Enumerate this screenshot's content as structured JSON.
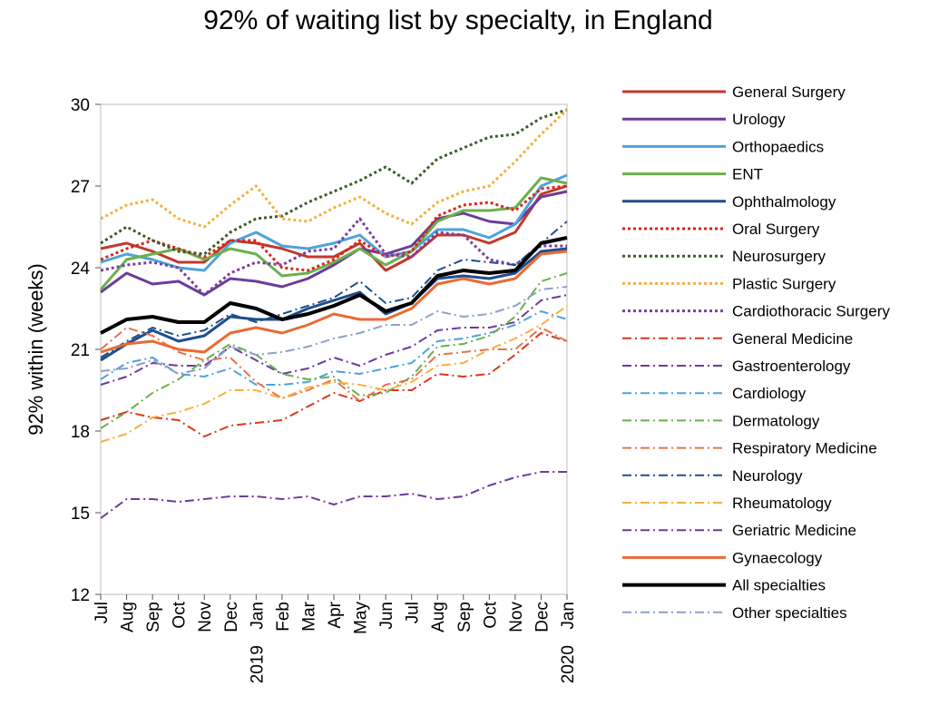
{
  "chart_data": {
    "type": "line",
    "title": "92% of waiting list by specialty, in England",
    "ylabel": "92% within (weeks)",
    "xlabel": "",
    "ylim": [
      12,
      30
    ],
    "yticks": [
      12,
      15,
      18,
      21,
      24,
      27,
      30
    ],
    "grid": false,
    "legend": "right",
    "x": [
      "Jul",
      "Aug",
      "Sep",
      "Oct",
      "Nov",
      "Dec",
      "Jan",
      "Feb",
      "Mar",
      "Apr",
      "May",
      "Jun",
      "Jul",
      "Aug",
      "Sep",
      "Oct",
      "Nov",
      "Dec",
      "Jan"
    ],
    "year_labels": [
      {
        "index": 6,
        "text": "2019"
      },
      {
        "index": 18,
        "text": "2020"
      }
    ],
    "series": [
      {
        "name": "General Surgery",
        "color": "#c0392b",
        "dash": "",
        "width": 3,
        "values": [
          24.7,
          24.9,
          24.6,
          24.2,
          24.2,
          25.0,
          24.9,
          24.7,
          24.4,
          24.4,
          24.9,
          23.9,
          24.4,
          25.2,
          25.2,
          24.9,
          25.3,
          26.7,
          27.0
        ]
      },
      {
        "name": "Urology",
        "color": "#6a3d9a",
        "dash": "",
        "width": 3,
        "values": [
          23.1,
          23.8,
          23.4,
          23.5,
          23.0,
          23.6,
          23.5,
          23.3,
          23.6,
          24.1,
          24.7,
          24.5,
          24.8,
          25.8,
          26.0,
          25.7,
          25.6,
          26.6,
          26.8
        ]
      },
      {
        "name": "Orthopaedics",
        "color": "#4ea3dc",
        "dash": "",
        "width": 3,
        "values": [
          24.2,
          24.5,
          24.3,
          24.0,
          23.9,
          24.9,
          25.3,
          24.8,
          24.7,
          24.9,
          25.2,
          24.4,
          24.6,
          25.4,
          25.4,
          25.1,
          25.6,
          27.0,
          27.4
        ]
      },
      {
        "name": "ENT",
        "color": "#6ab04c",
        "dash": "",
        "width": 3,
        "values": [
          23.2,
          24.3,
          24.5,
          24.7,
          24.3,
          24.7,
          24.5,
          23.7,
          23.8,
          24.2,
          24.7,
          24.1,
          24.6,
          25.7,
          26.1,
          26.1,
          26.2,
          27.3,
          27.1
        ]
      },
      {
        "name": "Ophthalmology",
        "color": "#1f4e8c",
        "dash": "",
        "width": 3,
        "values": [
          20.6,
          21.2,
          21.7,
          21.3,
          21.5,
          22.2,
          22.1,
          22.1,
          22.5,
          22.8,
          23.1,
          22.3,
          22.7,
          23.6,
          23.7,
          23.6,
          23.8,
          24.6,
          24.7
        ]
      },
      {
        "name": "Oral Surgery",
        "color": "#d9261c",
        "dash": "3,3",
        "width": 3,
        "values": [
          24.3,
          24.7,
          25.0,
          24.7,
          24.4,
          25.0,
          25.0,
          24.0,
          23.9,
          24.3,
          25.0,
          24.4,
          24.6,
          25.9,
          26.3,
          26.4,
          26.1,
          26.9,
          27.0
        ]
      },
      {
        "name": "Neurosurgery",
        "color": "#3b5e2b",
        "dash": "3,3",
        "width": 3,
        "values": [
          24.9,
          25.5,
          25.0,
          24.6,
          24.5,
          25.3,
          25.8,
          25.9,
          26.4,
          26.8,
          27.2,
          27.7,
          27.1,
          28.0,
          28.4,
          28.8,
          28.9,
          29.5,
          29.8
        ]
      },
      {
        "name": "Plastic Surgery",
        "color": "#f5b041",
        "dash": "3,3",
        "width": 3,
        "values": [
          25.8,
          26.3,
          26.5,
          25.8,
          25.5,
          26.3,
          27.0,
          25.8,
          25.7,
          26.2,
          26.6,
          26.0,
          25.6,
          26.4,
          26.8,
          27.0,
          27.9,
          28.9,
          29.8
        ]
      },
      {
        "name": "Cardiothoracic Surgery",
        "color": "#7b3fa0",
        "dash": "3,3",
        "width": 3,
        "values": [
          23.9,
          24.1,
          24.2,
          24.0,
          23.0,
          23.8,
          24.2,
          24.1,
          24.6,
          24.7,
          25.8,
          24.5,
          24.4,
          25.3,
          25.2,
          24.3,
          24.1,
          24.8,
          24.8
        ]
      },
      {
        "name": "General Medicine",
        "color": "#d9381e",
        "dash": "10,4,2,4",
        "width": 2,
        "values": [
          18.4,
          18.7,
          18.5,
          18.4,
          17.8,
          18.2,
          18.3,
          18.4,
          18.9,
          19.4,
          19.1,
          19.5,
          19.5,
          20.1,
          20.0,
          20.1,
          20.8,
          21.6,
          21.3
        ]
      },
      {
        "name": "Gastroenterology",
        "color": "#6a3d9a",
        "dash": "10,4,2,4",
        "width": 2,
        "values": [
          19.7,
          20.0,
          20.5,
          20.4,
          20.4,
          21.1,
          20.6,
          20.1,
          20.3,
          20.7,
          20.4,
          20.8,
          21.1,
          21.7,
          21.8,
          21.8,
          22.0,
          22.8,
          23.0
        ]
      },
      {
        "name": "Cardiology",
        "color": "#4ea3dc",
        "dash": "10,4,2,4",
        "width": 2,
        "values": [
          19.9,
          20.5,
          20.7,
          20.1,
          20.0,
          20.3,
          19.7,
          19.7,
          19.8,
          20.2,
          20.1,
          20.3,
          20.5,
          21.3,
          21.4,
          21.6,
          21.9,
          22.4,
          22.1
        ]
      },
      {
        "name": "Dermatology",
        "color": "#6ab04c",
        "dash": "10,4,2,4",
        "width": 2,
        "values": [
          18.1,
          18.7,
          19.4,
          19.9,
          20.6,
          21.2,
          20.8,
          20.1,
          19.9,
          20.0,
          19.3,
          19.4,
          20.0,
          21.1,
          21.2,
          21.5,
          22.2,
          23.5,
          23.8
        ]
      },
      {
        "name": "Respiratory Medicine",
        "color": "#e8734a",
        "dash": "10,4,2,4",
        "width": 2,
        "values": [
          21.0,
          21.8,
          21.5,
          20.9,
          20.6,
          20.7,
          19.8,
          19.2,
          19.5,
          19.9,
          19.1,
          19.7,
          19.9,
          20.8,
          20.9,
          21.0,
          21.0,
          21.8,
          21.3
        ]
      },
      {
        "name": "Neurology",
        "color": "#1f4e8c",
        "dash": "10,4,2,4",
        "width": 2,
        "values": [
          20.7,
          21.3,
          21.8,
          21.5,
          21.7,
          22.3,
          22.0,
          22.3,
          22.6,
          22.9,
          23.5,
          22.7,
          22.9,
          23.9,
          24.3,
          24.2,
          24.1,
          24.9,
          25.7
        ]
      },
      {
        "name": "Rheumatology",
        "color": "#f5b041",
        "dash": "10,4,2,4",
        "width": 2,
        "values": [
          17.6,
          17.9,
          18.5,
          18.7,
          19.0,
          19.5,
          19.5,
          19.2,
          19.6,
          19.8,
          19.7,
          19.5,
          19.8,
          20.4,
          20.5,
          21.0,
          21.4,
          21.9,
          22.6
        ]
      },
      {
        "name": "Geriatric Medicine",
        "color": "#6a3d9a",
        "dash": "10,4,2,4",
        "width": 2,
        "values": [
          14.8,
          15.5,
          15.5,
          15.4,
          15.5,
          15.6,
          15.6,
          15.5,
          15.6,
          15.3,
          15.6,
          15.6,
          15.7,
          15.5,
          15.6,
          16.0,
          16.3,
          16.5,
          16.5
        ]
      },
      {
        "name": "Gynaecology",
        "color": "#eb6a34",
        "dash": "",
        "width": 3,
        "values": [
          20.9,
          21.2,
          21.3,
          21.0,
          20.9,
          21.6,
          21.8,
          21.6,
          21.9,
          22.3,
          22.1,
          22.1,
          22.5,
          23.4,
          23.6,
          23.4,
          23.6,
          24.5,
          24.6
        ]
      },
      {
        "name": "All specialties",
        "color": "#000000",
        "dash": "",
        "width": 4,
        "values": [
          21.6,
          22.1,
          22.2,
          22.0,
          22.0,
          22.7,
          22.5,
          22.1,
          22.3,
          22.6,
          23.0,
          22.4,
          22.7,
          23.7,
          23.9,
          23.8,
          23.9,
          24.9,
          25.1
        ]
      },
      {
        "name": "Other specialties",
        "color": "#8da0c8",
        "dash": "10,4,2,4",
        "width": 2,
        "values": [
          20.2,
          20.3,
          20.6,
          20.1,
          20.3,
          21.1,
          20.8,
          20.9,
          21.1,
          21.4,
          21.6,
          21.9,
          21.9,
          22.4,
          22.2,
          22.3,
          22.6,
          23.2,
          23.3
        ]
      }
    ]
  }
}
